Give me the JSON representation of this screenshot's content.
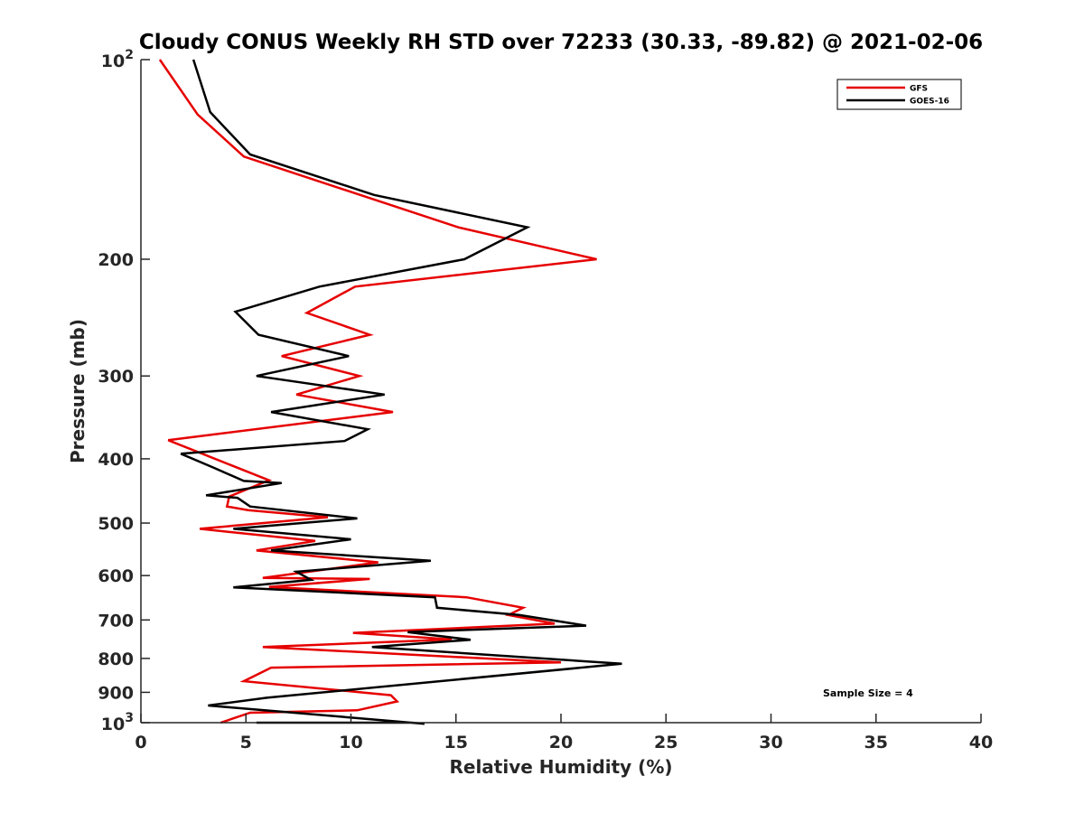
{
  "chart_data": {
    "type": "line",
    "title": "Cloudy CONUS Weekly RH STD over 72233 (30.33, -89.82) @ 2021-02-06",
    "xlabel": "Relative Humidity (%)",
    "ylabel": "Pressure (mb)",
    "xlim": [
      0,
      40
    ],
    "ylim": [
      100,
      1000
    ],
    "yscale": "log",
    "y_reversed": true,
    "grid": false,
    "legend_position": "top-right",
    "x_ticks": [
      0,
      5,
      10,
      15,
      20,
      25,
      30,
      35,
      40
    ],
    "x_tick_labels": [
      "0",
      "5",
      "10",
      "15",
      "20",
      "25",
      "30",
      "35",
      "40"
    ],
    "y_ticks": [
      100,
      200,
      300,
      400,
      500,
      600,
      700,
      800,
      900,
      1000
    ],
    "y_tick_labels": [
      {
        "base": "10",
        "exp": "2"
      },
      {
        "text": "200"
      },
      {
        "text": "300"
      },
      {
        "text": "400"
      },
      {
        "text": "500"
      },
      {
        "text": "600"
      },
      {
        "text": "700"
      },
      {
        "text": "800"
      },
      {
        "text": "900"
      },
      {
        "base": "10",
        "exp": "3"
      }
    ],
    "annotation": "Sample Size = 4",
    "series": [
      {
        "name": "GFS",
        "color": "#e60000",
        "rh": [
          0.9,
          2.7,
          4.9,
          15.1,
          21.7,
          10.2,
          7.9,
          10.9,
          6.7,
          10.4,
          7.4,
          12.0,
          1.3,
          6.1,
          4.2,
          4.1,
          5.1,
          8.9,
          2.8,
          8.3,
          5.5,
          11.3,
          5.8,
          10.9,
          6.1,
          15.5,
          18.2,
          17.5,
          19.7,
          10.1,
          14.8,
          5.8,
          20.0,
          6.2,
          4.9,
          11.9,
          12.2,
          10.3,
          5.2,
          3.8
        ],
        "pressure": [
          100,
          121,
          140,
          179,
          200,
          220,
          241,
          260,
          280,
          300,
          320,
          340,
          375,
          431,
          456,
          472,
          478,
          490,
          510,
          532,
          550,
          573,
          605,
          607,
          624,
          647,
          671,
          688,
          709,
          732,
          749,
          769,
          811,
          826,
          866,
          909,
          929,
          958,
          966,
          1000
        ]
      },
      {
        "name": "GOES-16",
        "color": "#000000",
        "rh": [
          2.5,
          3.3,
          5.2,
          11.1,
          18.4,
          15.4,
          8.5,
          4.5,
          5.6,
          9.9,
          5.5,
          11.6,
          6.2,
          10.8,
          9.7,
          1.9,
          3.5,
          4.9,
          6.7,
          3.1,
          4.6,
          5.2,
          10.3,
          4.4,
          10.0,
          6.2,
          13.8,
          7.4,
          8.1,
          4.4,
          14.0,
          14.1,
          18.0,
          21.2,
          12.7,
          15.7,
          11.0,
          22.9,
          6.0,
          3.2,
          7.1,
          13.5,
          12.9,
          6.0,
          5.5
        ],
        "pressure": [
          100,
          120,
          139,
          160,
          179,
          200,
          220,
          240,
          260,
          280,
          300,
          320,
          340,
          361,
          376,
          393,
          413,
          432,
          435,
          454,
          458,
          472,
          492,
          510,
          529,
          550,
          570,
          592,
          609,
          625,
          647,
          671,
          688,
          714,
          730,
          750,
          769,
          815,
          917,
          942,
          965,
          1004,
          1000,
          1000,
          1000
        ]
      }
    ]
  }
}
